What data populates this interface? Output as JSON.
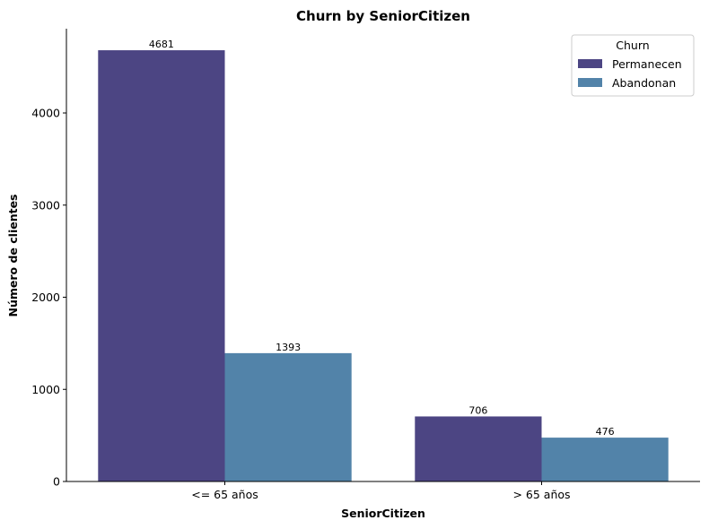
{
  "chart_data": {
    "type": "bar",
    "title": "Churn by SeniorCitizen",
    "xlabel": "SeniorCitizen",
    "ylabel": "Número de clientes",
    "categories": [
      "<= 65 años",
      "> 65 años"
    ],
    "series": [
      {
        "name": "Permanecen",
        "values": [
          4681,
          706
        ],
        "color": "#4c4583"
      },
      {
        "name": "Abandonan",
        "values": [
          1393,
          476
        ],
        "color": "#5283a9"
      }
    ],
    "ylim": [
      0,
      4915
    ],
    "yticks": [
      0,
      1000,
      2000,
      3000,
      4000
    ],
    "legend": {
      "title": "Churn",
      "placement": "top-right"
    },
    "grid": false
  }
}
